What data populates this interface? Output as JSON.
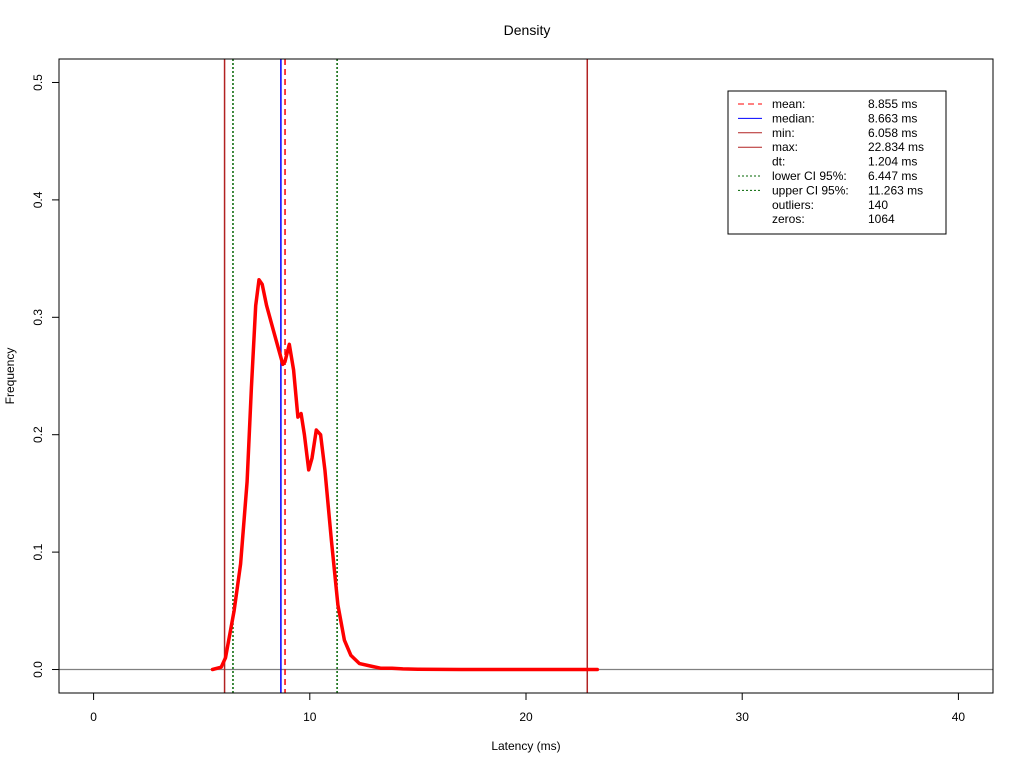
{
  "chart_data": {
    "type": "line",
    "title": "Density",
    "xlabel": "Latency (ms)",
    "ylabel": "Frequency",
    "xlim": [
      -1.6,
      41.6
    ],
    "ylim": [
      -0.02,
      0.52
    ],
    "x_ticks": [
      "0",
      "10",
      "20",
      "30",
      "40"
    ],
    "y_ticks": [
      "0.0",
      "0.1",
      "0.2",
      "0.3",
      "0.4",
      "0.5"
    ],
    "x_tick_values": [
      0,
      10,
      20,
      30,
      40
    ],
    "y_tick_values": [
      0,
      0.1,
      0.2,
      0.3,
      0.4,
      0.5
    ],
    "grid": false,
    "legend_position": "top-right",
    "baseline_y": 0,
    "series": [
      {
        "color": "#ff0000",
        "x": [
          5.5,
          5.9,
          6.1,
          6.3,
          6.5,
          6.8,
          7.1,
          7.3,
          7.5,
          7.65,
          7.8,
          8.0,
          8.3,
          8.6,
          8.75,
          8.85,
          9.05,
          9.25,
          9.45,
          9.6,
          9.75,
          9.95,
          10.1,
          10.3,
          10.5,
          10.7,
          11.0,
          11.3,
          11.6,
          11.9,
          12.3,
          12.8,
          13.3,
          13.8,
          14.3,
          15.0,
          17.0,
          20.0,
          22.0,
          23.3
        ],
        "y": [
          0.0,
          0.002,
          0.01,
          0.03,
          0.05,
          0.09,
          0.16,
          0.24,
          0.31,
          0.332,
          0.328,
          0.31,
          0.29,
          0.27,
          0.26,
          0.262,
          0.277,
          0.255,
          0.215,
          0.218,
          0.2,
          0.17,
          0.18,
          0.204,
          0.2,
          0.17,
          0.11,
          0.055,
          0.025,
          0.012,
          0.005,
          0.003,
          0.001,
          0.001,
          0.0005,
          0.0002,
          0.0,
          0.0,
          0.0,
          0.0
        ]
      }
    ],
    "markers": [
      {
        "name": "min",
        "x": 6.058,
        "color": "#b22222",
        "style": "solid"
      },
      {
        "name": "lower CI 95%",
        "x": 6.447,
        "color": "#006400",
        "style": "dotted"
      },
      {
        "name": "median",
        "x": 8.663,
        "color": "#0000ff",
        "style": "solid"
      },
      {
        "name": "mean",
        "x": 8.855,
        "color": "#ff0000",
        "style": "dashed"
      },
      {
        "name": "upper CI 95%",
        "x": 11.263,
        "color": "#006400",
        "style": "dotted"
      },
      {
        "name": "max",
        "x": 22.834,
        "color": "#b22222",
        "style": "solid"
      }
    ],
    "legend": [
      {
        "label": "mean:",
        "value": "8.855 ms",
        "color": "#ff0000",
        "style": "dashed"
      },
      {
        "label": "median:",
        "value": "8.663 ms",
        "color": "#0000ff",
        "style": "solid"
      },
      {
        "label": "min:",
        "value": "6.058 ms",
        "color": "#b22222",
        "style": "solid"
      },
      {
        "label": "max:",
        "value": "22.834 ms",
        "color": "#b22222",
        "style": "solid"
      },
      {
        "label": "dt:",
        "value": "1.204 ms",
        "color": "",
        "style": "none"
      },
      {
        "label": "lower CI 95%:",
        "value": "6.447 ms",
        "color": "#006400",
        "style": "dotted"
      },
      {
        "label": "upper CI 95%:",
        "value": "11.263 ms",
        "color": "#006400",
        "style": "dotted"
      },
      {
        "label": "outliers:",
        "value": "140",
        "color": "",
        "style": "none"
      },
      {
        "label": "zeros:",
        "value": "1064",
        "color": "",
        "style": "none"
      }
    ]
  }
}
